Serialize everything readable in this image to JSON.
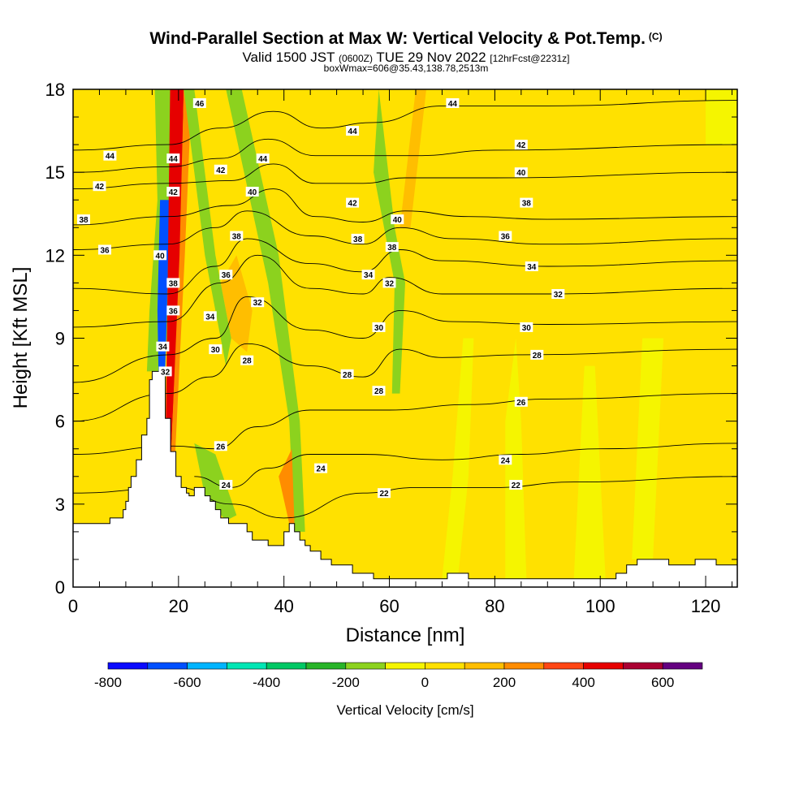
{
  "header": {
    "title": "Wind-Parallel Section at Max W: Vertical Velocity & Pot.Temp.",
    "title_suffix": "(C)",
    "valid_prefix": "Valid 1500 JST",
    "valid_zulu": "(0600Z)",
    "valid_date": "TUE 29 Nov 2022",
    "forecast_info": "[12hrFcst@2231z]",
    "box_info": "boxWmax=606@35.43,138.78,2513m"
  },
  "chart_data": {
    "type": "heatmap",
    "title": "Wind-Parallel Section at Max W: Vertical Velocity & Pot.Temp.",
    "xlabel": "Distance [nm]",
    "ylabel": "Height [Kft MSL]",
    "xlim": [
      0,
      126
    ],
    "ylim": [
      0,
      18
    ],
    "x_ticks": [
      "0",
      "20",
      "40",
      "60",
      "80",
      "100",
      "120"
    ],
    "y_ticks": [
      "0",
      "3",
      "6",
      "9",
      "12",
      "15",
      "18"
    ],
    "x_tick_values": [
      0,
      20,
      40,
      60,
      80,
      100,
      120
    ],
    "y_tick_values": [
      0,
      3,
      6,
      9,
      12,
      15,
      18
    ],
    "background_fill": "#ffe100",
    "colorbar": {
      "title": "Vertical Velocity [cm/s]",
      "tick_labels": [
        "-800",
        "-600",
        "-400",
        "-200",
        "0",
        "200",
        "400",
        "600"
      ],
      "tick_values": [
        -800,
        -600,
        -400,
        -200,
        0,
        200,
        400,
        600
      ],
      "bins": [
        {
          "from": -800,
          "to": -700,
          "color": "#0a0aff"
        },
        {
          "from": -700,
          "to": -600,
          "color": "#0050ff"
        },
        {
          "from": -600,
          "to": -500,
          "color": "#00b4ff"
        },
        {
          "from": -500,
          "to": -400,
          "color": "#00e6b4"
        },
        {
          "from": -400,
          "to": -300,
          "color": "#00c864"
        },
        {
          "from": -300,
          "to": -200,
          "color": "#28b428"
        },
        {
          "from": -200,
          "to": -100,
          "color": "#8cd21e"
        },
        {
          "from": -100,
          "to": 0,
          "color": "#f5f500"
        },
        {
          "from": 0,
          "to": 100,
          "color": "#ffe100"
        },
        {
          "from": 100,
          "to": 200,
          "color": "#ffbe00"
        },
        {
          "from": 200,
          "to": 300,
          "color": "#ff8c00"
        },
        {
          "from": 300,
          "to": 400,
          "color": "#ff4614"
        },
        {
          "from": 400,
          "to": 500,
          "color": "#e60000"
        },
        {
          "from": 500,
          "to": 600,
          "color": "#aa0032"
        },
        {
          "from": 600,
          "to": 700,
          "color": "#640080"
        }
      ]
    },
    "terrain": [
      [
        0,
        0
      ],
      [
        0,
        2.3
      ],
      [
        7,
        2.3
      ],
      [
        7,
        2.5
      ],
      [
        9.5,
        2.5
      ],
      [
        9.5,
        2.8
      ],
      [
        10,
        2.8
      ],
      [
        10,
        3.1
      ],
      [
        10.5,
        3.1
      ],
      [
        10.5,
        3.6
      ],
      [
        11,
        3.6
      ],
      [
        11,
        4.0
      ],
      [
        12,
        4.0
      ],
      [
        12,
        4.6
      ],
      [
        13,
        4.6
      ],
      [
        13,
        5.5
      ],
      [
        14,
        5.5
      ],
      [
        14,
        6.1
      ],
      [
        14.5,
        6.1
      ],
      [
        14.5,
        7.5
      ],
      [
        15,
        7.5
      ],
      [
        15,
        7.8
      ],
      [
        17.5,
        7.8
      ],
      [
        17.5,
        6.1
      ],
      [
        18.5,
        6.1
      ],
      [
        18.5,
        4.9
      ],
      [
        19.5,
        4.9
      ],
      [
        19.5,
        4.0
      ],
      [
        20.5,
        4.0
      ],
      [
        20.5,
        3.6
      ],
      [
        21.5,
        3.6
      ],
      [
        21.5,
        3.4
      ],
      [
        22,
        3.4
      ],
      [
        22,
        3.3
      ],
      [
        23,
        3.3
      ],
      [
        23,
        3.6
      ],
      [
        25,
        3.6
      ],
      [
        25,
        3.3
      ],
      [
        26,
        3.3
      ],
      [
        26,
        3.1
      ],
      [
        27,
        3.1
      ],
      [
        27,
        2.8
      ],
      [
        28,
        2.8
      ],
      [
        28,
        2.5
      ],
      [
        29.5,
        2.5
      ],
      [
        29.5,
        2.3
      ],
      [
        33,
        2.3
      ],
      [
        33,
        2.0
      ],
      [
        34,
        2.0
      ],
      [
        34,
        1.7
      ],
      [
        37,
        1.7
      ],
      [
        37,
        1.5
      ],
      [
        40,
        1.5
      ],
      [
        40,
        2.0
      ],
      [
        41,
        2.0
      ],
      [
        41,
        2.3
      ],
      [
        42,
        2.3
      ],
      [
        42,
        2.0
      ],
      [
        43,
        2.0
      ],
      [
        43,
        1.7
      ],
      [
        44,
        1.7
      ],
      [
        44,
        1.5
      ],
      [
        45,
        1.5
      ],
      [
        45,
        1.3
      ],
      [
        47,
        1.3
      ],
      [
        47,
        1.0
      ],
      [
        49,
        1.0
      ],
      [
        49,
        0.8
      ],
      [
        53,
        0.8
      ],
      [
        53,
        0.5
      ],
      [
        57,
        0.5
      ],
      [
        57,
        0.3
      ],
      [
        71,
        0.3
      ],
      [
        71,
        0.5
      ],
      [
        75,
        0.5
      ],
      [
        75,
        0.3
      ],
      [
        83,
        0.3
      ],
      [
        83,
        0.3
      ],
      [
        103,
        0.3
      ],
      [
        103,
        0.5
      ],
      [
        105,
        0.5
      ],
      [
        105,
        0.8
      ],
      [
        107,
        0.8
      ],
      [
        107,
        1.0
      ],
      [
        113,
        1.0
      ],
      [
        113,
        0.8
      ],
      [
        118,
        0.8
      ],
      [
        118,
        1.0
      ],
      [
        122,
        1.0
      ],
      [
        122,
        0.8
      ],
      [
        126,
        0.8
      ],
      [
        126,
        0
      ]
    ],
    "theta_contours": [
      {
        "value": 22,
        "label": "22",
        "points": [
          [
            0,
            3.4
          ],
          [
            20,
            3.6
          ],
          [
            30,
            3.0
          ],
          [
            40,
            2.5
          ],
          [
            55,
            3.4
          ],
          [
            65,
            3.6
          ],
          [
            80,
            3.6
          ],
          [
            95,
            3.8
          ],
          [
            126,
            4.0
          ]
        ],
        "label_at": [
          59,
          3.4
        ]
      },
      {
        "value": 24,
        "label": "24",
        "points": [
          [
            23,
            4.0
          ],
          [
            30,
            3.6
          ],
          [
            37,
            4.3
          ],
          [
            45,
            4.8
          ],
          [
            55,
            4.8
          ],
          [
            70,
            4.6
          ],
          [
            85,
            4.8
          ],
          [
            100,
            5.0
          ],
          [
            126,
            5.2
          ]
        ],
        "label_at": [
          84,
          4.6
        ]
      },
      {
        "value": 26,
        "label": "26",
        "points": [
          [
            0,
            4.8
          ],
          [
            19,
            5.1
          ],
          [
            27,
            5.0
          ],
          [
            35,
            5.8
          ],
          [
            45,
            6.4
          ],
          [
            60,
            6.4
          ],
          [
            75,
            6.6
          ],
          [
            90,
            6.8
          ],
          [
            126,
            7.0
          ]
        ],
        "label_at": [
          84,
          6.7
        ]
      },
      {
        "value": 28,
        "label": "28",
        "points": [
          [
            0,
            6.0
          ],
          [
            18,
            7.0
          ],
          [
            26,
            7.6
          ],
          [
            33,
            8.8
          ],
          [
            45,
            8.0
          ],
          [
            55,
            7.6
          ],
          [
            62,
            8.6
          ],
          [
            70,
            8.3
          ],
          [
            85,
            8.4
          ],
          [
            126,
            8.6
          ]
        ],
        "label_at": [
          88,
          8.4
        ]
      },
      {
        "value": 30,
        "label": "30",
        "points": [
          [
            0,
            7.4
          ],
          [
            18,
            8.4
          ],
          [
            27,
            9.0
          ],
          [
            33,
            10.5
          ],
          [
            45,
            9.3
          ],
          [
            55,
            9.0
          ],
          [
            62,
            10.0
          ],
          [
            72,
            9.6
          ],
          [
            90,
            9.5
          ],
          [
            126,
            9.6
          ]
        ],
        "label_at": [
          86,
          9.4
        ]
      },
      {
        "value": 32,
        "label": "32",
        "points": [
          [
            0,
            9.4
          ],
          [
            18,
            9.6
          ],
          [
            28,
            11.0
          ],
          [
            35,
            12.0
          ],
          [
            45,
            10.8
          ],
          [
            55,
            10.6
          ],
          [
            60,
            11.2
          ],
          [
            70,
            10.6
          ],
          [
            90,
            10.6
          ],
          [
            126,
            10.8
          ]
        ],
        "label_at": [
          93,
          10.6
        ]
      },
      {
        "value": 34,
        "label": "34",
        "points": [
          [
            0,
            10.8
          ],
          [
            18,
            10.6
          ],
          [
            27,
            11.6
          ],
          [
            33,
            12.6
          ],
          [
            45,
            11.7
          ],
          [
            55,
            11.4
          ],
          [
            62,
            12.2
          ],
          [
            70,
            11.8
          ],
          [
            90,
            11.6
          ],
          [
            126,
            11.8
          ]
        ],
        "label_at": [
          87,
          11.6
        ]
      },
      {
        "value": 36,
        "label": "36",
        "points": [
          [
            0,
            12.2
          ],
          [
            18,
            12.4
          ],
          [
            27,
            13.0
          ],
          [
            33,
            13.6
          ],
          [
            45,
            12.7
          ],
          [
            55,
            12.4
          ],
          [
            62,
            13.0
          ],
          [
            72,
            12.6
          ],
          [
            90,
            12.4
          ],
          [
            126,
            12.6
          ]
        ],
        "label_at": [
          82,
          12.7
        ]
      },
      {
        "value": 38,
        "label": "38",
        "points": [
          [
            0,
            13.1
          ],
          [
            18,
            13.4
          ],
          [
            30,
            13.8
          ],
          [
            38,
            14.4
          ],
          [
            46,
            13.4
          ],
          [
            55,
            13.2
          ],
          [
            63,
            13.6
          ],
          [
            75,
            13.4
          ],
          [
            90,
            13.3
          ],
          [
            126,
            13.4
          ]
        ],
        "label_at": [
          86,
          13.9
        ]
      },
      {
        "value": 40,
        "label": "40",
        "points": [
          [
            0,
            14.4
          ],
          [
            18,
            14.6
          ],
          [
            30,
            14.7
          ],
          [
            38,
            15.3
          ],
          [
            46,
            14.6
          ],
          [
            55,
            14.6
          ],
          [
            63,
            14.8
          ],
          [
            80,
            14.8
          ],
          [
            126,
            15.0
          ]
        ],
        "label_at": [
          85,
          15.0
        ]
      },
      {
        "value": 42,
        "label": "42",
        "points": [
          [
            0,
            15.0
          ],
          [
            18,
            15.2
          ],
          [
            28,
            15.5
          ],
          [
            37,
            16.2
          ],
          [
            46,
            15.6
          ],
          [
            55,
            15.6
          ],
          [
            65,
            15.6
          ],
          [
            80,
            15.8
          ],
          [
            126,
            16.0
          ]
        ],
        "label_at": [
          85,
          16.0
        ]
      },
      {
        "value": 44,
        "label": "44",
        "points": [
          [
            0,
            15.8
          ],
          [
            18,
            16.0
          ],
          [
            28,
            16.6
          ],
          [
            38,
            17.2
          ],
          [
            47,
            16.6
          ],
          [
            57,
            16.8
          ],
          [
            70,
            17.4
          ],
          [
            90,
            17.4
          ],
          [
            126,
            17.6
          ]
        ],
        "label_at": [
          72,
          17.6
        ]
      }
    ],
    "contour_labels": [
      {
        "text": "44",
        "x": 7,
        "y": 15.6
      },
      {
        "text": "42",
        "x": 5,
        "y": 14.5
      },
      {
        "text": "38",
        "x": 2,
        "y": 13.3
      },
      {
        "text": "36",
        "x": 6,
        "y": 12.2
      },
      {
        "text": "40",
        "x": 16.5,
        "y": 12.0
      },
      {
        "text": "44",
        "x": 19,
        "y": 15.5
      },
      {
        "text": "42",
        "x": 19,
        "y": 14.3
      },
      {
        "text": "38",
        "x": 19,
        "y": 11.0
      },
      {
        "text": "36",
        "x": 19,
        "y": 10.0
      },
      {
        "text": "34",
        "x": 17,
        "y": 8.7
      },
      {
        "text": "32",
        "x": 17.5,
        "y": 7.8
      },
      {
        "text": "46",
        "x": 24,
        "y": 17.5
      },
      {
        "text": "42",
        "x": 28,
        "y": 15.1
      },
      {
        "text": "40",
        "x": 34,
        "y": 14.3
      },
      {
        "text": "38",
        "x": 31,
        "y": 12.7
      },
      {
        "text": "36",
        "x": 29,
        "y": 11.3
      },
      {
        "text": "34",
        "x": 26,
        "y": 9.8
      },
      {
        "text": "32",
        "x": 35,
        "y": 10.3
      },
      {
        "text": "30",
        "x": 27,
        "y": 8.6
      },
      {
        "text": "28",
        "x": 33,
        "y": 8.2
      },
      {
        "text": "44",
        "x": 36,
        "y": 15.5
      },
      {
        "text": "44",
        "x": 53,
        "y": 16.5
      },
      {
        "text": "42",
        "x": 53,
        "y": 13.9
      },
      {
        "text": "38",
        "x": 54,
        "y": 12.6
      },
      {
        "text": "34",
        "x": 56,
        "y": 11.3
      },
      {
        "text": "30",
        "x": 58,
        "y": 9.4
      },
      {
        "text": "28",
        "x": 52,
        "y": 7.7
      },
      {
        "text": "28",
        "x": 58,
        "y": 7.1
      },
      {
        "text": "24",
        "x": 47,
        "y": 4.3
      },
      {
        "text": "22",
        "x": 59,
        "y": 3.4
      },
      {
        "text": "26",
        "x": 28,
        "y": 5.1
      },
      {
        "text": "24",
        "x": 29,
        "y": 3.7
      },
      {
        "text": "40",
        "x": 61.5,
        "y": 13.3
      },
      {
        "text": "38",
        "x": 60.5,
        "y": 12.3
      },
      {
        "text": "32",
        "x": 60,
        "y": 11.0
      },
      {
        "text": "44",
        "x": 72,
        "y": 17.5
      },
      {
        "text": "42",
        "x": 85,
        "y": 16.0
      },
      {
        "text": "40",
        "x": 85,
        "y": 15.0
      },
      {
        "text": "38",
        "x": 86,
        "y": 13.9
      },
      {
        "text": "36",
        "x": 82,
        "y": 12.7
      },
      {
        "text": "34",
        "x": 87,
        "y": 11.6
      },
      {
        "text": "32",
        "x": 92,
        "y": 10.6
      },
      {
        "text": "30",
        "x": 86,
        "y": 9.4
      },
      {
        "text": "28",
        "x": 88,
        "y": 8.4
      },
      {
        "text": "26",
        "x": 85,
        "y": 6.7
      },
      {
        "text": "24",
        "x": 82,
        "y": 4.6
      },
      {
        "text": "22",
        "x": 84,
        "y": 3.7
      }
    ]
  }
}
